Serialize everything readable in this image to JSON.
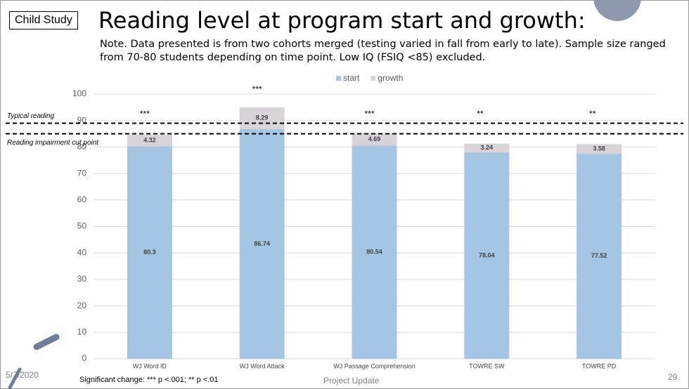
{
  "slide": {
    "tag": "Child Study",
    "title": "Reading level at program start and growth:",
    "note": "Note. Data presented is from two cohorts merged (testing varied in fall from early to late). Sample size ranged from 70-80 students depending on time point. Low IQ (FSIQ <85) excluded.",
    "footnote": "Significant change:  *** p <.001; ** p <.01",
    "date": "5/7/2020",
    "footer": "Project Update",
    "page": "29"
  },
  "chart_data": {
    "type": "stacked_bar",
    "categories": [
      "WJ Word ID",
      "WJ Word Attack",
      "WJ Passage Comprehension",
      "TOWRE SW",
      "TOWRE PD"
    ],
    "series": [
      {
        "name": "start",
        "color": "#a4c6e3",
        "values": [
          80.3,
          86.74,
          80.54,
          78.04,
          77.52
        ]
      },
      {
        "name": "growth",
        "color": "#d8d3d8",
        "values": [
          4.32,
          8.29,
          4.69,
          3.24,
          3.58
        ]
      }
    ],
    "significance": [
      "***",
      "***",
      "***",
      "**",
      "**"
    ],
    "reference_lines": [
      {
        "label": "Typical reading",
        "value": 89
      },
      {
        "label": "Reading impairment cut point",
        "value": 85
      }
    ],
    "ylim": [
      0,
      100
    ],
    "yticks": [
      0,
      10,
      20,
      30,
      40,
      50,
      60,
      70,
      80,
      90,
      100
    ],
    "grid": true,
    "legend": "top"
  }
}
